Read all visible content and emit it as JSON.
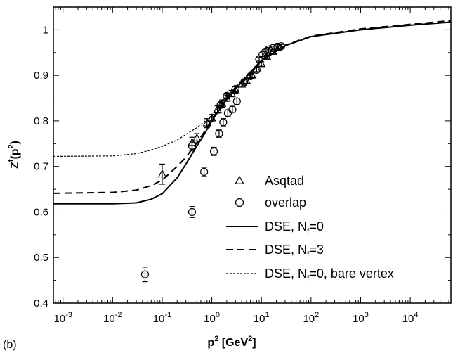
{
  "panel_label": "(b)",
  "chart_data": {
    "type": "scatter",
    "xlabel": "p² [GeV²]",
    "ylabel": "Zᶠ(p²)",
    "xscale": "log",
    "xlim": [
      0.00064,
      66000
    ],
    "ylim": [
      0.4,
      1.05
    ],
    "x_ticks": [
      {
        "value": 0.001,
        "mant": "10",
        "exp": "-3"
      },
      {
        "value": 0.01,
        "mant": "10",
        "exp": "-2"
      },
      {
        "value": 0.1,
        "mant": "10",
        "exp": "-1"
      },
      {
        "value": 1,
        "mant": "10",
        "exp": "0"
      },
      {
        "value": 10,
        "mant": "10",
        "exp": "1"
      },
      {
        "value": 100,
        "mant": "10",
        "exp": "2"
      },
      {
        "value": 1000,
        "mant": "10",
        "exp": "3"
      },
      {
        "value": 10000,
        "mant": "10",
        "exp": "4"
      }
    ],
    "y_ticks": [
      {
        "value": 0.4,
        "label": "0.4"
      },
      {
        "value": 0.5,
        "label": "0.5"
      },
      {
        "value": 0.6,
        "label": "0.6"
      },
      {
        "value": 0.7,
        "label": "0.7"
      },
      {
        "value": 0.8,
        "label": "0.8"
      },
      {
        "value": 0.9,
        "label": "0.9"
      },
      {
        "value": 1.0,
        "label": "1"
      }
    ],
    "legend_position": "lower-right",
    "series": [
      {
        "name": "Asqtad",
        "kind": "points",
        "marker": "triangle",
        "points": [
          {
            "x": 0.1,
            "y": 0.683,
            "err": 0.022
          },
          {
            "x": 0.4,
            "y": 0.752,
            "err": 0.012
          },
          {
            "x": 0.5,
            "y": 0.762,
            "err": 0.01
          },
          {
            "x": 0.8,
            "y": 0.795,
            "err": 0.01
          },
          {
            "x": 1.0,
            "y": 0.806,
            "err": 0.008
          },
          {
            "x": 1.3,
            "y": 0.825,
            "err": 0.008
          },
          {
            "x": 1.6,
            "y": 0.838,
            "err": 0.008
          },
          {
            "x": 2.0,
            "y": 0.85,
            "err": 0.007
          },
          {
            "x": 2.5,
            "y": 0.86,
            "err": 0.007
          },
          {
            "x": 3.0,
            "y": 0.868,
            "err": 0.007
          },
          {
            "x": 4.0,
            "y": 0.88,
            "err": 0.006
          },
          {
            "x": 5.0,
            "y": 0.888,
            "err": 0.006
          },
          {
            "x": 6.5,
            "y": 0.9,
            "err": 0.005
          },
          {
            "x": 8.0,
            "y": 0.913,
            "err": 0.005
          },
          {
            "x": 10.0,
            "y": 0.925,
            "err": 0.005
          },
          {
            "x": 13.0,
            "y": 0.94,
            "err": 0.004
          },
          {
            "x": 17.0,
            "y": 0.952,
            "err": 0.004
          },
          {
            "x": 22.0,
            "y": 0.96,
            "err": 0.004
          }
        ]
      },
      {
        "name": "overlap",
        "kind": "points",
        "marker": "circle",
        "points": [
          {
            "x": 0.045,
            "y": 0.463,
            "err": 0.016
          },
          {
            "x": 0.4,
            "y": 0.6,
            "err": 0.012
          },
          {
            "x": 0.4,
            "y": 0.745,
            "err": 0.01
          },
          {
            "x": 0.7,
            "y": 0.688,
            "err": 0.01
          },
          {
            "x": 1.1,
            "y": 0.733,
            "err": 0.009
          },
          {
            "x": 1.4,
            "y": 0.772,
            "err": 0.008
          },
          {
            "x": 1.7,
            "y": 0.797,
            "err": 0.008
          },
          {
            "x": 2.1,
            "y": 0.817,
            "err": 0.007
          },
          {
            "x": 2.6,
            "y": 0.825,
            "err": 0.007
          },
          {
            "x": 3.2,
            "y": 0.843,
            "err": 0.007
          },
          {
            "x": 1.5,
            "y": 0.835,
            "err": 0.006
          },
          {
            "x": 2.0,
            "y": 0.855,
            "err": 0.006
          },
          {
            "x": 3.0,
            "y": 0.87,
            "err": 0.006
          },
          {
            "x": 4.5,
            "y": 0.885,
            "err": 0.005
          },
          {
            "x": 6.0,
            "y": 0.898,
            "err": 0.005
          },
          {
            "x": 8.0,
            "y": 0.912,
            "err": 0.005
          },
          {
            "x": 9.0,
            "y": 0.935,
            "err": 0.004
          },
          {
            "x": 10.5,
            "y": 0.945,
            "err": 0.004
          },
          {
            "x": 12.0,
            "y": 0.952,
            "err": 0.004
          },
          {
            "x": 14.0,
            "y": 0.957,
            "err": 0.004
          },
          {
            "x": 17.0,
            "y": 0.96,
            "err": 0.004
          },
          {
            "x": 21.0,
            "y": 0.963,
            "err": 0.004
          },
          {
            "x": 25.0,
            "y": 0.964,
            "err": 0.004
          }
        ]
      },
      {
        "name": "DSE, N_f=0",
        "kind": "line",
        "style": "solid",
        "points": [
          [
            0.00064,
            0.618
          ],
          [
            0.01,
            0.618
          ],
          [
            0.03,
            0.62
          ],
          [
            0.06,
            0.628
          ],
          [
            0.1,
            0.64
          ],
          [
            0.2,
            0.675
          ],
          [
            0.3,
            0.705
          ],
          [
            0.5,
            0.745
          ],
          [
            0.7,
            0.77
          ],
          [
            1,
            0.8
          ],
          [
            2,
            0.848
          ],
          [
            5,
            0.897
          ],
          [
            10,
            0.932
          ],
          [
            30,
            0.965
          ],
          [
            100,
            0.985
          ],
          [
            1000,
            1.0
          ],
          [
            10000,
            1.01
          ],
          [
            66000,
            1.017
          ]
        ]
      },
      {
        "name": "DSE, N_f=3",
        "kind": "line",
        "style": "dashed",
        "points": [
          [
            0.00064,
            0.641
          ],
          [
            0.01,
            0.643
          ],
          [
            0.03,
            0.648
          ],
          [
            0.06,
            0.658
          ],
          [
            0.1,
            0.67
          ],
          [
            0.2,
            0.7
          ],
          [
            0.3,
            0.72
          ],
          [
            0.5,
            0.752
          ],
          [
            0.7,
            0.775
          ],
          [
            1,
            0.803
          ],
          [
            2,
            0.85
          ],
          [
            5,
            0.898
          ],
          [
            10,
            0.933
          ],
          [
            30,
            0.966
          ],
          [
            100,
            0.986
          ],
          [
            1000,
            1.002
          ],
          [
            10000,
            1.012
          ],
          [
            66000,
            1.02
          ]
        ]
      },
      {
        "name": "DSE, N_f=0, bare vertex",
        "kind": "line",
        "style": "dotted",
        "points": [
          [
            0.00064,
            0.722
          ],
          [
            0.01,
            0.723
          ],
          [
            0.03,
            0.728
          ],
          [
            0.06,
            0.736
          ],
          [
            0.1,
            0.744
          ],
          [
            0.2,
            0.758
          ],
          [
            0.3,
            0.77
          ],
          [
            0.5,
            0.785
          ],
          [
            1,
            0.812
          ],
          [
            2,
            0.853
          ],
          [
            5,
            0.9
          ],
          [
            10,
            0.933
          ],
          [
            30,
            0.966
          ],
          [
            100,
            0.985
          ],
          [
            1000,
            1.0
          ],
          [
            10000,
            1.01
          ],
          [
            66000,
            1.016
          ]
        ]
      }
    ],
    "legend_entries": [
      {
        "marker": "triangle",
        "label": "Asqtad"
      },
      {
        "marker": "circle",
        "label": "overlap"
      },
      {
        "line": "solid",
        "base": "DSE, N",
        "sub": "f",
        "rest": "=0"
      },
      {
        "line": "dashed",
        "base": "DSE, N",
        "sub": "f",
        "rest": "=3"
      },
      {
        "line": "dotted",
        "base": "DSE, N",
        "sub": "f",
        "rest": "=0, bare vertex"
      }
    ]
  }
}
